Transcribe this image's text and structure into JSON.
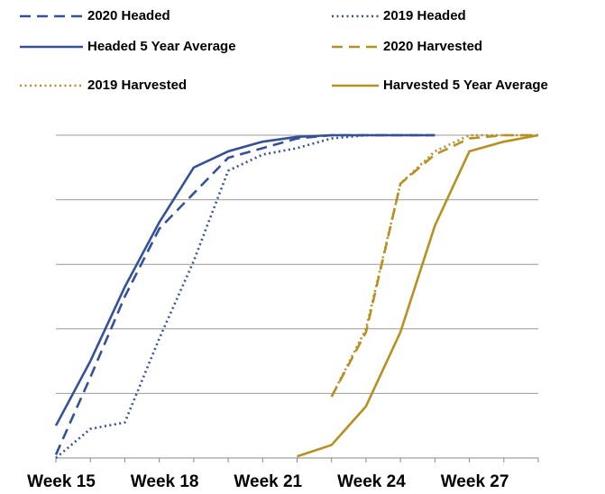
{
  "chart_data": {
    "type": "line",
    "categories": [
      "Week 15",
      null,
      null,
      "Week 18",
      null,
      null,
      "Week 21",
      null,
      null,
      "Week 24",
      null,
      null,
      "Week 27",
      null,
      null
    ],
    "ylim": [
      0,
      100
    ],
    "yticks": [
      0,
      20,
      40,
      60,
      80,
      100
    ],
    "grid": true,
    "series": [
      {
        "name": "2020 Headed",
        "color": "#34519a",
        "dash": "dashed",
        "values": [
          1,
          25,
          50,
          71,
          82,
          93,
          96,
          99,
          100,
          100,
          100,
          100,
          null,
          null,
          null
        ]
      },
      {
        "name": "2019 Headed",
        "color": "#34519a",
        "dash": "dotted",
        "values": [
          0,
          9,
          11,
          37,
          61,
          89,
          94,
          96,
          99,
          100,
          100,
          100,
          null,
          null,
          null
        ]
      },
      {
        "name": "Headed 5 Year Average",
        "color": "#34519a",
        "dash": "solid",
        "values": [
          10,
          30,
          53,
          73,
          90,
          95,
          98,
          99.5,
          100,
          100,
          100,
          100,
          null,
          null,
          null
        ]
      },
      {
        "name": "2020 Harvested",
        "color": "#b8901f",
        "dash": "dashed",
        "values": [
          null,
          null,
          null,
          null,
          null,
          null,
          null,
          null,
          19,
          39,
          85,
          94,
          99,
          100,
          100
        ]
      },
      {
        "name": "2019 Harvested",
        "color": "#b8901f",
        "dash": "dotted",
        "values": [
          null,
          null,
          null,
          null,
          null,
          null,
          null,
          null,
          19,
          40,
          85,
          95,
          100,
          100,
          100
        ]
      },
      {
        "name": "Harvested 5 Year Average",
        "color": "#b8901f",
        "dash": "solid",
        "values": [
          null,
          null,
          null,
          null,
          null,
          null,
          null,
          0.5,
          4,
          16,
          39,
          72,
          95,
          98,
          100
        ]
      }
    ]
  }
}
